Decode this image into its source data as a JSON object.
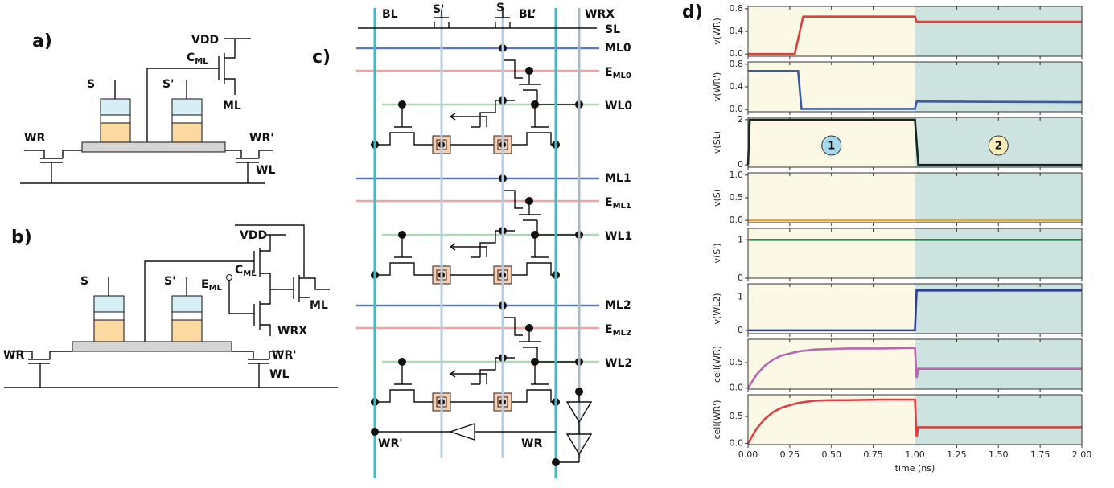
{
  "diagram_a": {
    "label": "a)",
    "vdd": "VDD",
    "cml": {
      "main": "C",
      "sub": "ML"
    },
    "ml": "ML",
    "s": "S",
    "s_prime": "S'",
    "wr": "WR",
    "wr_prime": "WR'",
    "wl": "WL"
  },
  "diagram_b": {
    "label": "b)",
    "vdd": "VDD",
    "cml": {
      "main": "C",
      "sub": "ML"
    },
    "eml": {
      "main": "E",
      "sub": "ML"
    },
    "ml": "ML",
    "wrx": "WRX",
    "s": "S",
    "s_prime": "S'",
    "wr": "WR",
    "wr_prime": "WR'",
    "wl": "WL"
  },
  "diagram_c": {
    "label": "c)",
    "bl": "BL",
    "s_prime": "S'",
    "s": "S",
    "bl_prime": "BL’",
    "wrx": "WRX",
    "sl": "SL",
    "wr_prime": "WR'",
    "wr": "WR",
    "rows": [
      {
        "ml": "ML0",
        "eml": {
          "main": "E",
          "sub": "ML0"
        },
        "wl": "WL0"
      },
      {
        "ml": "ML1",
        "eml": {
          "main": "E",
          "sub": "ML1"
        },
        "wl": "WL1"
      },
      {
        "ml": "ML2",
        "eml": {
          "main": "E",
          "sub": "ML2"
        },
        "wl": "WL2"
      }
    ]
  },
  "panel_d_label": "d)",
  "chart_data": [
    {
      "type": "line",
      "ylabel": "v(WR)",
      "xlim": [
        0,
        2
      ],
      "ylim": [
        -0.04,
        0.84
      ],
      "yticks": [
        {
          "value": 0,
          "label": "0.0"
        },
        {
          "value": 0.4,
          "label": "0.4"
        },
        {
          "value": 0.8,
          "label": "0.8"
        }
      ],
      "xticks": [
        0,
        0.25,
        0.5,
        0.75,
        1,
        1.25,
        1.5,
        1.75,
        2
      ],
      "regions": [
        {
          "x": [
            0,
            1
          ],
          "color": "#fbf9e6"
        },
        {
          "x": [
            1,
            2
          ],
          "color": "#cde3df"
        }
      ],
      "x": [
        0,
        0.28,
        0.33,
        1.0,
        1.01,
        2.0
      ],
      "series": [
        {
          "name": "v(WR)",
          "color": "#d9433a",
          "values": [
            0,
            0,
            0.66,
            0.66,
            0.57,
            0.57
          ]
        }
      ]
    },
    {
      "type": "line",
      "ylabel": "v(WR')",
      "xlim": [
        0,
        2
      ],
      "ylim": [
        -0.04,
        0.84
      ],
      "yticks": [
        {
          "value": 0,
          "label": "0.0"
        },
        {
          "value": 0.4,
          "label": "0.4"
        },
        {
          "value": 0.8,
          "label": "0.8"
        }
      ],
      "xticks": [
        0,
        0.25,
        0.5,
        0.75,
        1,
        1.25,
        1.5,
        1.75,
        2
      ],
      "regions": [
        {
          "x": [
            0,
            1
          ],
          "color": "#fbf9e6"
        },
        {
          "x": [
            1,
            2
          ],
          "color": "#cde3df"
        }
      ],
      "x": [
        0,
        0.3,
        0.32,
        1.0,
        1.01,
        2.0
      ],
      "series": [
        {
          "name": "v(WR')",
          "color": "#3b5ba3",
          "values": [
            0.68,
            0.68,
            0.01,
            0.01,
            0.14,
            0.13
          ]
        }
      ]
    },
    {
      "type": "line",
      "ylabel": "v(SL)",
      "xlim": [
        0,
        2
      ],
      "ylim": [
        -0.1,
        2.1
      ],
      "yticks": [
        0,
        2
      ],
      "xticks": [
        0,
        0.25,
        0.5,
        0.75,
        1,
        1.25,
        1.5,
        1.75,
        2
      ],
      "regions": [
        {
          "x": [
            0,
            1
          ],
          "color": "#fbf9e6",
          "label": "1",
          "label_color": "#a8d8ec"
        },
        {
          "x": [
            1,
            2
          ],
          "color": "#cde3df",
          "label": "2",
          "label_color": "#fbeeb8"
        }
      ],
      "x": [
        0,
        0.01,
        1.0,
        1.02,
        2.0
      ],
      "series": [
        {
          "name": "v(SL)",
          "color": "#15261f",
          "values": [
            0,
            2,
            2,
            0,
            0
          ]
        }
      ]
    },
    {
      "type": "line",
      "ylabel": "v(S)",
      "xlim": [
        0,
        2
      ],
      "ylim": [
        -0.05,
        1.05
      ],
      "yticks": [
        {
          "value": 0,
          "label": "0.0"
        },
        {
          "value": 0.5,
          "label": "0.5"
        },
        {
          "value": 1,
          "label": "1.0"
        }
      ],
      "xticks": [
        0,
        0.25,
        0.5,
        0.75,
        1,
        1.25,
        1.5,
        1.75,
        2
      ],
      "regions": [
        {
          "x": [
            0,
            1
          ],
          "color": "#fbf9e6"
        },
        {
          "x": [
            1,
            2
          ],
          "color": "#cde3df"
        }
      ],
      "x": [
        0,
        2
      ],
      "series": [
        {
          "name": "v(S)",
          "color": "#e3a83a",
          "values": [
            0,
            0
          ]
        }
      ]
    },
    {
      "type": "line",
      "ylabel": "v(S')",
      "xlim": [
        0,
        2
      ],
      "ylim": [
        0,
        1.3
      ],
      "yticks": [
        0,
        1
      ],
      "xticks": [
        0,
        0.25,
        0.5,
        0.75,
        1,
        1.25,
        1.5,
        1.75,
        2
      ],
      "regions": [
        {
          "x": [
            0,
            1
          ],
          "color": "#fbf9e6"
        },
        {
          "x": [
            1,
            2
          ],
          "color": "#cde3df"
        }
      ],
      "x": [
        0,
        2
      ],
      "series": [
        {
          "name": "v(S')",
          "color": "#2a8a4c",
          "values": [
            1,
            1
          ]
        }
      ]
    },
    {
      "type": "line",
      "ylabel": "v(WL2)",
      "xlim": [
        0,
        2
      ],
      "ylim": [
        -0.1,
        1.4
      ],
      "yticks": [
        0,
        1
      ],
      "xticks": [
        0,
        0.25,
        0.5,
        0.75,
        1,
        1.25,
        1.5,
        1.75,
        2
      ],
      "regions": [
        {
          "x": [
            0,
            1
          ],
          "color": "#fbf9e6"
        },
        {
          "x": [
            1,
            2
          ],
          "color": "#cde3df"
        }
      ],
      "x": [
        0,
        1.0,
        1.01,
        2.0
      ],
      "series": [
        {
          "name": "v(WL2)",
          "color": "#2c3f92",
          "values": [
            0,
            0,
            1.2,
            1.2
          ]
        }
      ]
    },
    {
      "type": "line",
      "ylabel": "cell(WR)",
      "xlim": [
        0,
        2
      ],
      "ylim": [
        -0.02,
        0.96
      ],
      "yticks": [
        {
          "value": 0,
          "label": "0.0"
        },
        {
          "value": 0.5,
          "label": "0.5"
        }
      ],
      "xticks": [
        0,
        0.25,
        0.5,
        0.75,
        1,
        1.25,
        1.5,
        1.75,
        2
      ],
      "regions": [
        {
          "x": [
            0,
            1
          ],
          "color": "#fbf9e6"
        },
        {
          "x": [
            1,
            2
          ],
          "color": "#cde3df"
        }
      ],
      "x": [
        0,
        0.05,
        0.1,
        0.15,
        0.2,
        0.3,
        0.4,
        0.5,
        0.6,
        0.8,
        1.0,
        1.01,
        1.02,
        2.0
      ],
      "series": [
        {
          "name": "cell(WR)",
          "color": "#b868b2",
          "values": [
            0,
            0.26,
            0.44,
            0.56,
            0.64,
            0.72,
            0.76,
            0.77,
            0.78,
            0.78,
            0.79,
            0.2,
            0.38,
            0.38
          ]
        }
      ]
    },
    {
      "type": "line",
      "ylabel": "cell(WR')",
      "xlabel": "time (ns)",
      "xlim": [
        0,
        2
      ],
      "ylim": [
        -0.02,
        0.9
      ],
      "yticks": [
        {
          "value": 0,
          "label": "0.0"
        },
        {
          "value": 0.5,
          "label": "0.5"
        }
      ],
      "xticks": [
        {
          "value": 0,
          "label": "0.00"
        },
        {
          "value": 0.25,
          "label": "0.25"
        },
        {
          "value": 0.5,
          "label": "0.50"
        },
        {
          "value": 0.75,
          "label": "0.75"
        },
        {
          "value": 1,
          "label": "1.00"
        },
        {
          "value": 1.25,
          "label": "1.25"
        },
        {
          "value": 1.5,
          "label": "1.50"
        },
        {
          "value": 1.75,
          "label": "1.75"
        },
        {
          "value": 2,
          "label": "2.00"
        }
      ],
      "regions": [
        {
          "x": [
            0,
            1
          ],
          "color": "#fbf9e6"
        },
        {
          "x": [
            1,
            2
          ],
          "color": "#cde3df"
        }
      ],
      "x": [
        0,
        0.05,
        0.1,
        0.15,
        0.2,
        0.3,
        0.4,
        0.5,
        0.6,
        0.8,
        1.0,
        1.01,
        1.02,
        2.0
      ],
      "series": [
        {
          "name": "cell(WR')",
          "color": "#d84242",
          "values": [
            0,
            0.27,
            0.45,
            0.58,
            0.66,
            0.75,
            0.79,
            0.8,
            0.8,
            0.81,
            0.81,
            0.12,
            0.3,
            0.3
          ]
        }
      ]
    }
  ]
}
